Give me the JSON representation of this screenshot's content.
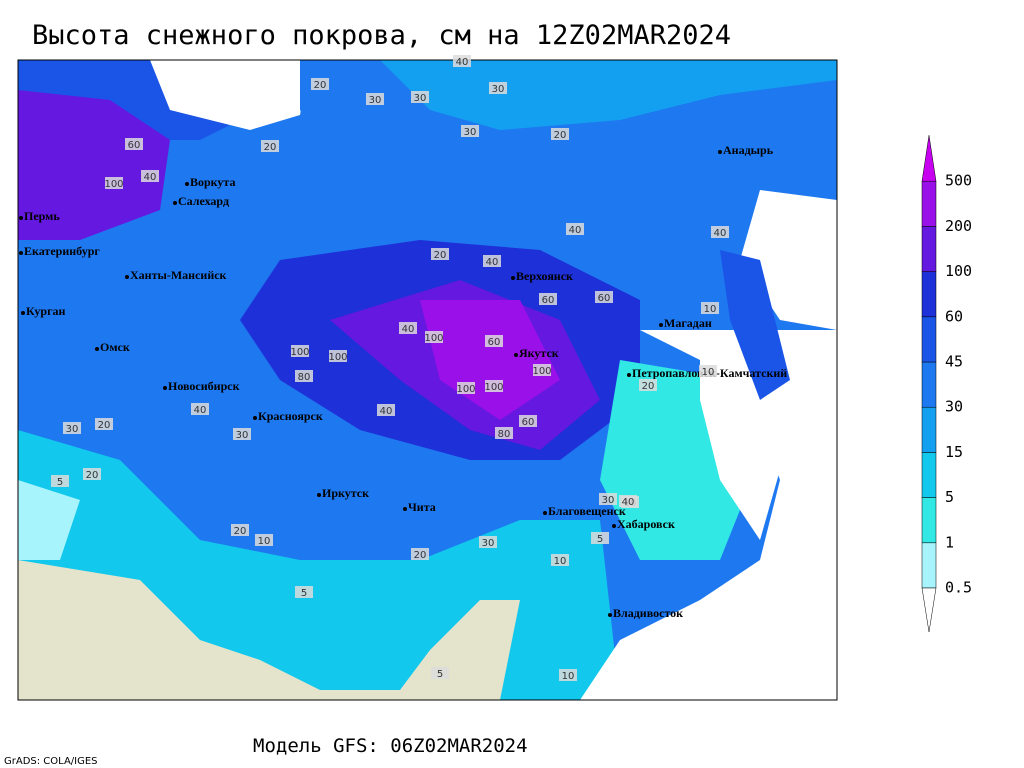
{
  "title": "Высота снежного покрова, см на 12Z02MAR2024",
  "model_label": "Модель GFS: 06Z02MAR2024",
  "credit": "GrADS: COLA/IGES",
  "colorbar": {
    "levels": [
      0.5,
      1,
      5,
      15,
      30,
      45,
      60,
      100,
      200,
      500
    ],
    "colors": [
      "#a8f4fc",
      "#32e8e4",
      "#12c8ec",
      "#14a0f0",
      "#1e78f0",
      "#1a55e8",
      "#1e30d8",
      "#6418e0",
      "#9a10e8"
    ],
    "over_color": "#c800f0",
    "under_color": "#ffffff"
  },
  "cities": [
    "Воркута",
    "Салехард",
    "Пермь",
    "Екатеринбург",
    "Ханты-Мансийск",
    "Курган",
    "Омск",
    "Новосибирск",
    "Красноярск",
    "Иркутск",
    "Чита",
    "Верхоянск",
    "Якутск",
    "Магадан",
    "Анадырь",
    "Петропавловск-Камчатский",
    "Благовещенск",
    "Хабаровск",
    "Владивосток"
  ],
  "contour_labels": [
    40,
    20,
    30,
    30,
    30,
    20,
    30,
    20,
    60,
    100,
    40,
    20,
    40,
    40,
    40,
    60,
    40,
    60,
    60,
    10,
    100,
    100,
    80,
    100,
    100,
    60,
    100,
    100,
    80,
    40,
    30,
    20,
    30,
    10,
    5,
    20,
    5,
    10,
    20,
    10,
    30,
    20,
    10,
    5,
    30,
    40,
    40,
    20,
    5,
    10
  ]
}
